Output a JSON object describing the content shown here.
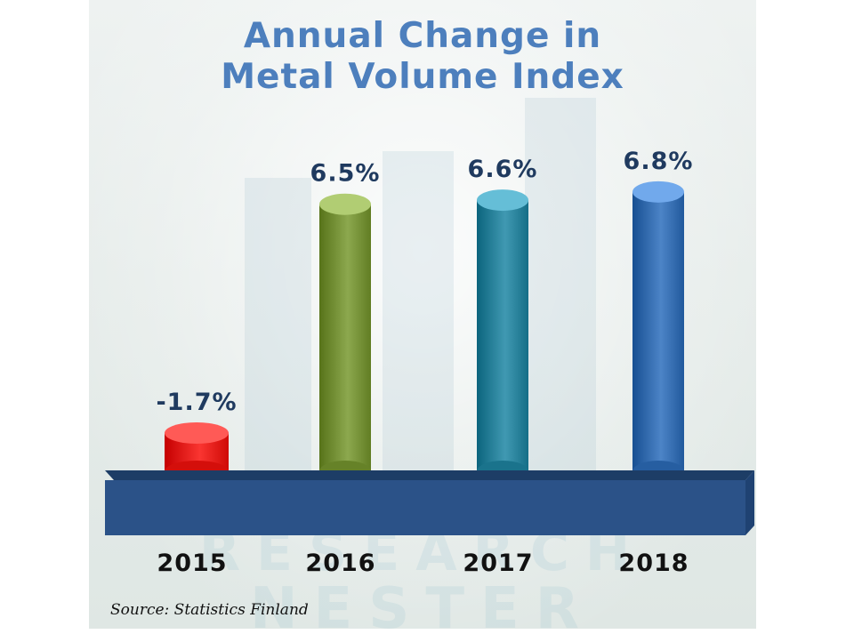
{
  "chart_data": {
    "type": "bar",
    "title_lines": [
      "Annual Change in",
      "Metal Volume Index"
    ],
    "categories": [
      "2015",
      "2016",
      "2017",
      "2018"
    ],
    "values": [
      -1.7,
      6.5,
      6.6,
      6.8
    ],
    "value_labels": [
      "-1.7%",
      "6.5%",
      "6.6%",
      "6.8%"
    ],
    "bar_colors": [
      "#e8231f",
      "#7a963c",
      "#2e87a0",
      "#3a72b5"
    ],
    "xlabel": "",
    "ylabel": "",
    "grid": false,
    "legend": "none"
  },
  "source": "Source: Statistics Finland",
  "watermark": [
    "RESEARCH",
    "NESTER"
  ]
}
